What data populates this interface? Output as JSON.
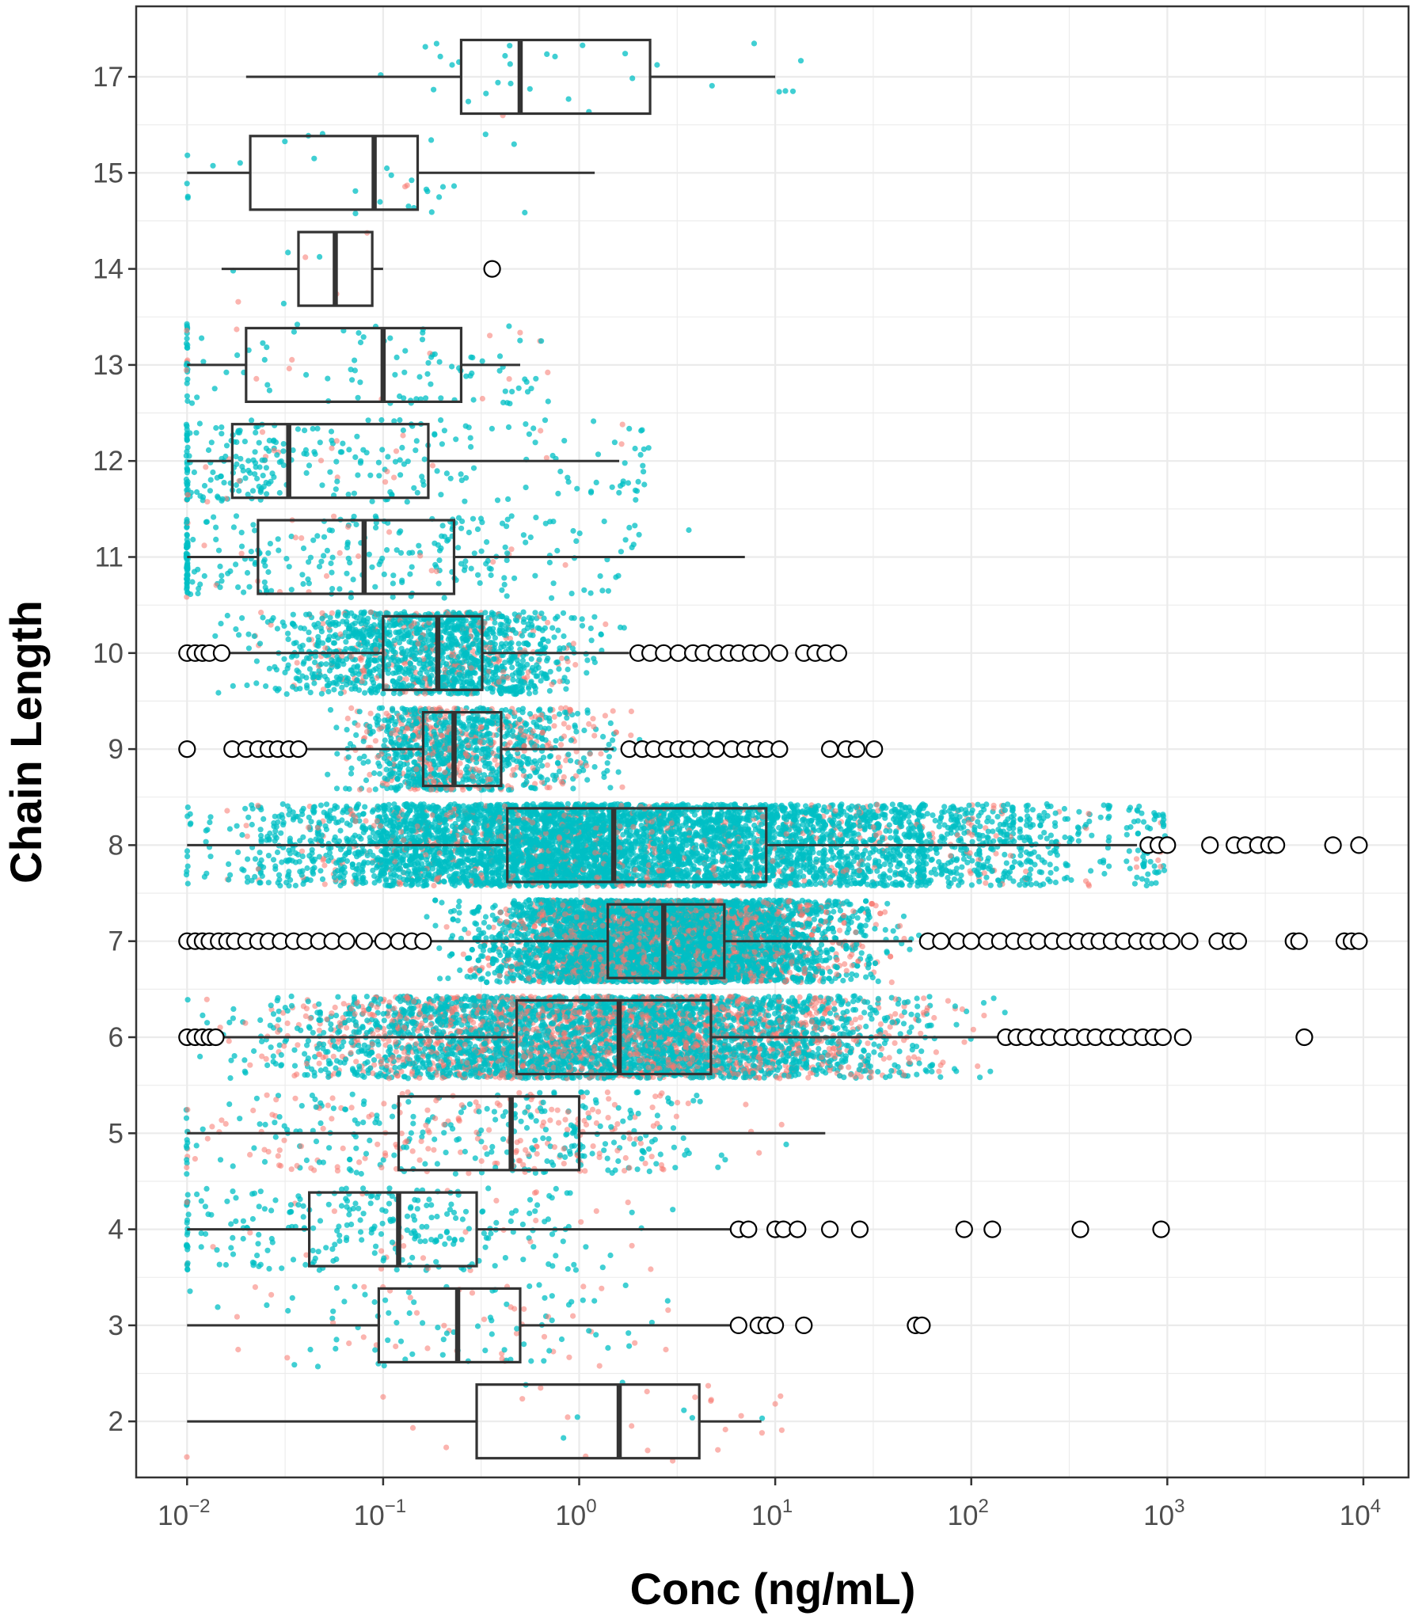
{
  "chart_data": {
    "type": "boxplot",
    "orientation": "horizontal",
    "xscale": "log10",
    "xlim": [
      0.0055,
      17000
    ],
    "xlabel": "Conc (ng/mL)",
    "ylabel": "Chain Length",
    "grid": true,
    "legend": "none",
    "xticks": [
      {
        "value": 0.01,
        "base": "10",
        "exp": "−2"
      },
      {
        "value": 0.1,
        "base": "10",
        "exp": "−1"
      },
      {
        "value": 1,
        "base": "10",
        "exp": "0"
      },
      {
        "value": 10,
        "base": "10",
        "exp": "1"
      },
      {
        "value": 100,
        "base": "10",
        "exp": "2"
      },
      {
        "value": 1000,
        "base": "10",
        "exp": "3"
      },
      {
        "value": 10000,
        "base": "10",
        "exp": "4"
      }
    ],
    "colors": {
      "series_a": "#F8766D",
      "series_b": "#00BFC4",
      "box": "#333333",
      "grid": "#ebebeb"
    },
    "boxes": [
      {
        "label": "17",
        "whisker_low": 0.02,
        "q1": 0.25,
        "median": 0.5,
        "q3": 2.3,
        "whisker_high": 10,
        "n_points": 30,
        "red_share": 0.1,
        "outliers": []
      },
      {
        "label": "15",
        "whisker_low": 0.01,
        "q1": 0.021,
        "median": 0.09,
        "q3": 0.15,
        "whisker_high": 1.2,
        "n_points": 30,
        "red_share": 0.1,
        "outliers": []
      },
      {
        "label": "14",
        "whisker_low": 0.015,
        "q1": 0.037,
        "median": 0.057,
        "q3": 0.088,
        "whisker_high": 0.1,
        "n_points": 8,
        "red_share": 0.2,
        "outliers": [
          0.36
        ]
      },
      {
        "label": "13",
        "whisker_low": 0.01,
        "q1": 0.02,
        "median": 0.1,
        "q3": 0.25,
        "whisker_high": 0.5,
        "n_points": 120,
        "red_share": 0.1,
        "outliers": []
      },
      {
        "label": "12",
        "whisker_low": 0.01,
        "q1": 0.017,
        "median": 0.033,
        "q3": 0.17,
        "whisker_high": 1.6,
        "n_points": 300,
        "red_share": 0.08,
        "outliers": []
      },
      {
        "label": "11",
        "whisker_low": 0.01,
        "q1": 0.023,
        "median": 0.08,
        "q3": 0.23,
        "whisker_high": 7,
        "n_points": 300,
        "red_share": 0.1,
        "outliers": []
      },
      {
        "label": "10",
        "whisker_low": 0.01,
        "q1": 0.1,
        "median": 0.19,
        "q3": 0.32,
        "whisker_high": 1.8,
        "n_points": 1500,
        "red_share": 0.15,
        "outliers": [
          0.01,
          0.011,
          0.012,
          0.013,
          0.015,
          2,
          2.3,
          2.7,
          3.2,
          3.8,
          4.3,
          5,
          5.8,
          6.5,
          7.5,
          8.5,
          10.5,
          14,
          16,
          18,
          21
        ]
      },
      {
        "label": "9",
        "whisker_low": 0.04,
        "q1": 0.16,
        "median": 0.23,
        "q3": 0.4,
        "whisker_high": 1.5,
        "n_points": 1200,
        "red_share": 0.3,
        "outliers": [
          0.01,
          0.017,
          0.02,
          0.023,
          0.026,
          0.029,
          0.033,
          0.037,
          1.8,
          2.1,
          2.4,
          2.8,
          3.2,
          3.6,
          4.2,
          5,
          6,
          7,
          8,
          9,
          10.5,
          19,
          23,
          26,
          32
        ]
      },
      {
        "label": "8",
        "whisker_low": 0.01,
        "q1": 0.43,
        "median": 1.5,
        "q3": 9,
        "whisker_high": 700,
        "n_points": 6000,
        "red_share": 0.1,
        "outliers": [
          800,
          900,
          1000,
          1650,
          2200,
          2500,
          2900,
          3300,
          3600,
          7000,
          9500
        ]
      },
      {
        "label": "7",
        "whisker_low": 0.018,
        "q1": 1.4,
        "median": 2.7,
        "q3": 5.5,
        "whisker_high": 50,
        "n_points": 6000,
        "red_share": 0.25,
        "outliers": [
          0.01,
          0.011,
          0.012,
          0.013,
          0.0145,
          0.016,
          0.0175,
          0.02,
          0.023,
          0.026,
          0.03,
          0.035,
          0.04,
          0.047,
          0.055,
          0.065,
          0.08,
          0.1,
          0.12,
          0.14,
          0.16,
          60,
          70,
          85,
          100,
          120,
          140,
          165,
          190,
          220,
          260,
          300,
          350,
          400,
          450,
          520,
          600,
          700,
          800,
          900,
          1050,
          1300,
          1800,
          2100,
          2300,
          4400,
          4700,
          8000,
          8700,
          9500
        ]
      },
      {
        "label": "6",
        "whisker_low": 0.015,
        "q1": 0.48,
        "median": 1.6,
        "q3": 4.7,
        "whisker_high": 140,
        "n_points": 5000,
        "red_share": 0.35,
        "outliers": [
          0.01,
          0.011,
          0.012,
          0.013,
          0.014,
          150,
          170,
          190,
          220,
          250,
          290,
          330,
          380,
          430,
          500,
          560,
          650,
          750,
          850,
          950,
          1200,
          5000
        ]
      },
      {
        "label": "5",
        "whisker_low": 0.01,
        "q1": 0.12,
        "median": 0.45,
        "q3": 1,
        "whisker_high": 18,
        "n_points": 450,
        "red_share": 0.45,
        "outliers": []
      },
      {
        "label": "4",
        "whisker_low": 0.01,
        "q1": 0.042,
        "median": 0.12,
        "q3": 0.3,
        "whisker_high": 6,
        "n_points": 300,
        "red_share": 0.1,
        "outliers": [
          6.5,
          7.3,
          10,
          11,
          13,
          19,
          27,
          92,
          128,
          360,
          930
        ]
      },
      {
        "label": "3",
        "whisker_low": 0.01,
        "q1": 0.095,
        "median": 0.24,
        "q3": 0.5,
        "whisker_high": 6,
        "n_points": 120,
        "red_share": 0.3,
        "outliers": [
          6.5,
          8.2,
          9,
          10,
          14,
          52,
          56
        ]
      },
      {
        "label": "2",
        "whisker_low": 0.01,
        "q1": 0.3,
        "median": 1.6,
        "q3": 4.1,
        "whisker_high": 8.5,
        "n_points": 30,
        "red_share": 0.6,
        "outliers": []
      }
    ]
  }
}
